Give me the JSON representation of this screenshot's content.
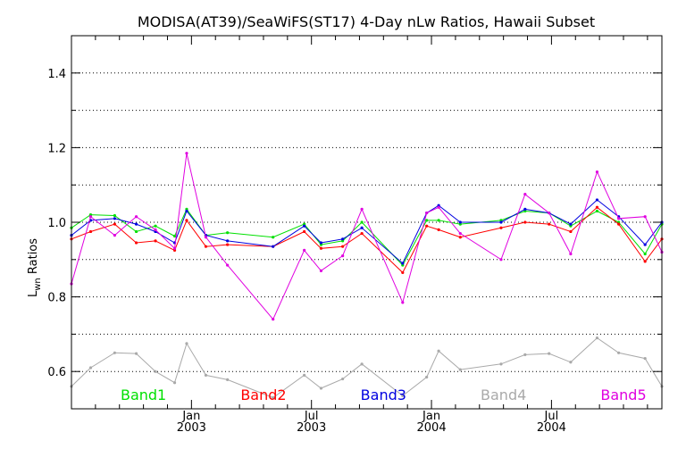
{
  "chart_data": {
    "type": "line",
    "title": "MODISA(AT39)/SeaWiFS(ST17) 4-Day nLw Ratios, Hawaii Subset",
    "ylabel_main": "L",
    "ylabel_sub": "wn",
    "ylabel_rest": " Ratios",
    "xlim": [
      0,
      24.6
    ],
    "ylim": [
      0.5,
      1.5
    ],
    "grid": true,
    "y_ticks": [
      {
        "value": 0.6,
        "label": "0.6"
      },
      {
        "value": 0.8,
        "label": "0.8"
      },
      {
        "value": 1.0,
        "label": "1.0"
      },
      {
        "value": 1.2,
        "label": "1.2"
      },
      {
        "value": 1.4,
        "label": "1.4"
      }
    ],
    "y_minor": [
      0.7,
      0.9,
      1.1,
      1.3,
      1.5
    ],
    "x_major_ticks": [
      {
        "value": 5,
        "label_top": "Jan",
        "label_bottom": "2003"
      },
      {
        "value": 10,
        "label_top": "Jul",
        "label_bottom": "2003"
      },
      {
        "value": 15,
        "label_top": "Jan",
        "label_bottom": "2004"
      },
      {
        "value": 20,
        "label_top": "Jul",
        "label_bottom": "2004"
      }
    ],
    "x_minor_ticks": [
      1,
      2,
      3,
      4,
      6,
      7,
      8,
      9,
      11,
      12,
      13,
      14,
      16,
      17,
      18,
      19,
      21,
      22,
      23,
      24
    ],
    "series": [
      {
        "name": "Band1",
        "color": "#00e000",
        "legend_x": 3,
        "points": [
          [
            0,
            0.985
          ],
          [
            0.8,
            1.02
          ],
          [
            1.8,
            1.018
          ],
          [
            2.7,
            0.975
          ],
          [
            3.5,
            0.99
          ],
          [
            4.3,
            0.963
          ],
          [
            4.8,
            1.035
          ],
          [
            5.6,
            0.965
          ],
          [
            6.5,
            0.972
          ],
          [
            8.4,
            0.96
          ],
          [
            9.7,
            0.995
          ],
          [
            10.4,
            0.94
          ],
          [
            11.3,
            0.95
          ],
          [
            12.1,
            1.0
          ],
          [
            13.8,
            0.885
          ],
          [
            14.8,
            1.005
          ],
          [
            15.3,
            1.005
          ],
          [
            16.2,
            0.995
          ],
          [
            17.9,
            1.005
          ],
          [
            18.9,
            1.03
          ],
          [
            19.9,
            1.025
          ],
          [
            20.8,
            0.99
          ],
          [
            21.9,
            1.03
          ],
          [
            22.8,
            1.0
          ],
          [
            23.9,
            0.915
          ],
          [
            24.6,
            0.995
          ]
        ]
      },
      {
        "name": "Band2",
        "color": "#ff0000",
        "legend_x": 8,
        "points": [
          [
            0,
            0.955
          ],
          [
            0.8,
            0.975
          ],
          [
            1.8,
            0.995
          ],
          [
            2.7,
            0.945
          ],
          [
            3.5,
            0.95
          ],
          [
            4.3,
            0.925
          ],
          [
            4.8,
            1.005
          ],
          [
            5.6,
            0.935
          ],
          [
            6.5,
            0.94
          ],
          [
            8.4,
            0.935
          ],
          [
            9.7,
            0.975
          ],
          [
            10.4,
            0.93
          ],
          [
            11.3,
            0.935
          ],
          [
            12.1,
            0.97
          ],
          [
            13.8,
            0.865
          ],
          [
            14.8,
            0.99
          ],
          [
            15.3,
            0.98
          ],
          [
            16.2,
            0.96
          ],
          [
            17.9,
            0.985
          ],
          [
            18.9,
            1.0
          ],
          [
            19.9,
            0.995
          ],
          [
            20.8,
            0.975
          ],
          [
            21.9,
            1.04
          ],
          [
            22.8,
            0.995
          ],
          [
            23.9,
            0.895
          ],
          [
            24.6,
            0.955
          ]
        ]
      },
      {
        "name": "Band3",
        "color": "#0000e0",
        "legend_x": 13,
        "points": [
          [
            0,
            0.965
          ],
          [
            0.8,
            1.005
          ],
          [
            1.8,
            1.01
          ],
          [
            2.7,
            0.995
          ],
          [
            3.5,
            0.975
          ],
          [
            4.3,
            0.945
          ],
          [
            4.8,
            1.03
          ],
          [
            5.6,
            0.965
          ],
          [
            6.5,
            0.95
          ],
          [
            8.4,
            0.935
          ],
          [
            9.7,
            0.99
          ],
          [
            10.4,
            0.945
          ],
          [
            11.3,
            0.955
          ],
          [
            12.1,
            0.985
          ],
          [
            13.8,
            0.89
          ],
          [
            14.8,
            1.025
          ],
          [
            15.3,
            1.045
          ],
          [
            16.2,
            1.0
          ],
          [
            17.9,
            1.0
          ],
          [
            18.9,
            1.035
          ],
          [
            19.9,
            1.025
          ],
          [
            20.8,
            0.995
          ],
          [
            21.9,
            1.06
          ],
          [
            22.8,
            1.015
          ],
          [
            23.9,
            0.94
          ],
          [
            24.6,
            1.0
          ]
        ]
      },
      {
        "name": "Band4",
        "color": "#a9a9a9",
        "legend_x": 18,
        "points": [
          [
            0,
            0.56
          ],
          [
            0.8,
            0.61
          ],
          [
            1.8,
            0.65
          ],
          [
            2.7,
            0.648
          ],
          [
            3.5,
            0.6
          ],
          [
            4.3,
            0.57
          ],
          [
            4.8,
            0.675
          ],
          [
            5.6,
            0.59
          ],
          [
            6.5,
            0.578
          ],
          [
            8.4,
            0.53
          ],
          [
            9.7,
            0.59
          ],
          [
            10.4,
            0.555
          ],
          [
            11.3,
            0.58
          ],
          [
            12.1,
            0.62
          ],
          [
            13.8,
            0.535
          ],
          [
            14.8,
            0.585
          ],
          [
            15.3,
            0.655
          ],
          [
            16.2,
            0.605
          ],
          [
            17.9,
            0.62
          ],
          [
            18.9,
            0.645
          ],
          [
            19.9,
            0.648
          ],
          [
            20.8,
            0.625
          ],
          [
            21.9,
            0.69
          ],
          [
            22.8,
            0.65
          ],
          [
            23.9,
            0.635
          ],
          [
            24.6,
            0.56
          ]
        ]
      },
      {
        "name": "Band5",
        "color": "#e000e0",
        "legend_x": 23,
        "points": [
          [
            0,
            0.835
          ],
          [
            0.8,
            1.015
          ],
          [
            1.8,
            0.965
          ],
          [
            2.7,
            1.015
          ],
          [
            3.5,
            0.98
          ],
          [
            4.3,
            0.93
          ],
          [
            4.8,
            1.185
          ],
          [
            5.6,
            0.96
          ],
          [
            6.5,
            0.885
          ],
          [
            8.4,
            0.74
          ],
          [
            9.7,
            0.925
          ],
          [
            10.4,
            0.87
          ],
          [
            11.3,
            0.91
          ],
          [
            12.1,
            1.035
          ],
          [
            13.8,
            0.785
          ],
          [
            14.8,
            1.025
          ],
          [
            15.3,
            1.04
          ],
          [
            16.2,
            0.97
          ],
          [
            17.9,
            0.9
          ],
          [
            18.9,
            1.075
          ],
          [
            19.9,
            1.025
          ],
          [
            20.8,
            0.915
          ],
          [
            21.9,
            1.135
          ],
          [
            22.8,
            1.01
          ],
          [
            23.9,
            1.015
          ],
          [
            24.6,
            0.92
          ]
        ]
      }
    ]
  }
}
